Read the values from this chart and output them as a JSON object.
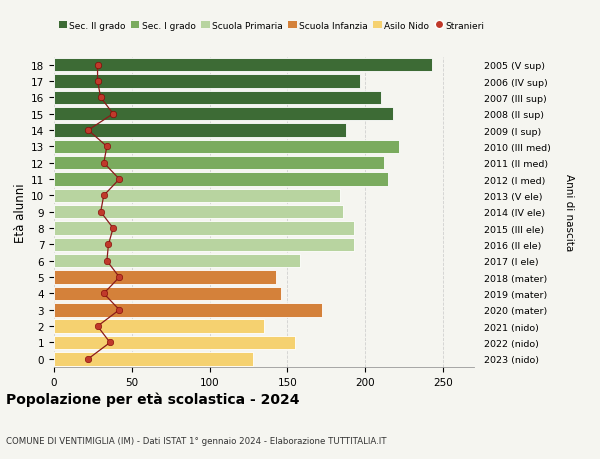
{
  "ages": [
    18,
    17,
    16,
    15,
    14,
    13,
    12,
    11,
    10,
    9,
    8,
    7,
    6,
    5,
    4,
    3,
    2,
    1,
    0
  ],
  "right_labels": [
    "2005 (V sup)",
    "2006 (IV sup)",
    "2007 (III sup)",
    "2008 (II sup)",
    "2009 (I sup)",
    "2010 (III med)",
    "2011 (II med)",
    "2012 (I med)",
    "2013 (V ele)",
    "2014 (IV ele)",
    "2015 (III ele)",
    "2016 (II ele)",
    "2017 (I ele)",
    "2018 (mater)",
    "2019 (mater)",
    "2020 (mater)",
    "2021 (nido)",
    "2022 (nido)",
    "2023 (nido)"
  ],
  "bar_values": [
    243,
    197,
    210,
    218,
    188,
    222,
    212,
    215,
    184,
    186,
    193,
    193,
    158,
    143,
    146,
    172,
    135,
    155,
    128
  ],
  "bar_colors": [
    "#3d6b35",
    "#3d6b35",
    "#3d6b35",
    "#3d6b35",
    "#3d6b35",
    "#7aab5e",
    "#7aab5e",
    "#7aab5e",
    "#b8d4a0",
    "#b8d4a0",
    "#b8d4a0",
    "#b8d4a0",
    "#b8d4a0",
    "#d4813a",
    "#d4813a",
    "#d4813a",
    "#f5d170",
    "#f5d170",
    "#f5d170"
  ],
  "stranieri_values": [
    28,
    28,
    30,
    38,
    22,
    34,
    32,
    42,
    32,
    30,
    38,
    35,
    34,
    42,
    32,
    42,
    28,
    36,
    22
  ],
  "legend_labels": [
    "Sec. II grado",
    "Sec. I grado",
    "Scuola Primaria",
    "Scuola Infanzia",
    "Asilo Nido",
    "Stranieri"
  ],
  "legend_colors": [
    "#3d6b35",
    "#7aab5e",
    "#b8d4a0",
    "#d4813a",
    "#f5d170",
    "#c0392b"
  ],
  "title": "Popolazione per età scolastica - 2024",
  "subtitle": "COMUNE DI VENTIMIGLIA (IM) - Dati ISTAT 1° gennaio 2024 - Elaborazione TUTTITALIA.IT",
  "ylabel_left": "Età alunni",
  "ylabel_right": "Anni di nascita",
  "xlim": [
    0,
    270
  ],
  "xticks": [
    0,
    50,
    100,
    150,
    200,
    250
  ],
  "background_color": "#f5f5f0",
  "grid_color": "#cccccc"
}
